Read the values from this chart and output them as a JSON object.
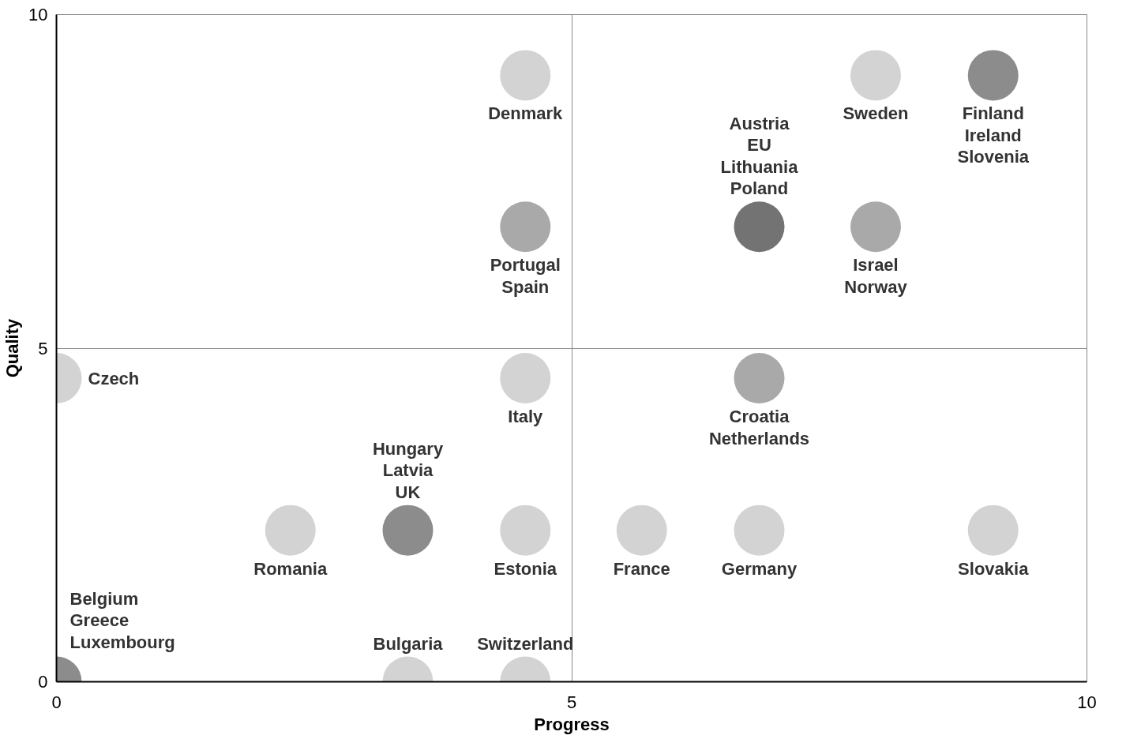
{
  "chart_data": {
    "type": "scatter",
    "xlabel": "Progress",
    "ylabel": "Quality",
    "xlim": [
      0,
      10
    ],
    "ylim": [
      0,
      10
    ],
    "xticks": [
      0,
      5,
      10
    ],
    "yticks": [
      0,
      5,
      10
    ],
    "grid": true,
    "marker": "circle",
    "series": [
      {
        "x": [
          0,
          3.41,
          4.55,
          2.27,
          3.41,
          4.55,
          5.68,
          6.82,
          9.09,
          0,
          4.55,
          6.82,
          4.55,
          6.82,
          7.95,
          4.55,
          7.95,
          9.09
        ],
        "values": [
          0,
          0,
          0,
          2.27,
          2.27,
          2.27,
          2.27,
          2.27,
          2.27,
          4.55,
          4.55,
          4.55,
          6.82,
          6.82,
          6.82,
          9.09,
          9.09,
          9.09
        ],
        "colors": [
          "#8c8c8c",
          "#d3d3d3",
          "#d3d3d3",
          "#d3d3d3",
          "#8c8c8c",
          "#d3d3d3",
          "#d3d3d3",
          "#d3d3d3",
          "#d3d3d3",
          "#d3d3d3",
          "#d3d3d3",
          "#a9a9a9",
          "#a9a9a9",
          "#737373",
          "#a9a9a9",
          "#d3d3d3",
          "#d3d3d3",
          "#8c8c8c"
        ]
      }
    ],
    "annotations": [
      {
        "text": "Belgium\nGreece\nLuxembourg",
        "x": 0,
        "y": 0
      },
      {
        "text": "Bulgaria",
        "x": 3.41,
        "y": 0
      },
      {
        "text": "Switzerland",
        "x": 4.55,
        "y": 0
      },
      {
        "text": "Romania",
        "x": 2.27,
        "y": 2.27
      },
      {
        "text": "Hungary\nLatvia\nUK",
        "x": 3.41,
        "y": 2.27
      },
      {
        "text": "Estonia",
        "x": 4.55,
        "y": 2.27
      },
      {
        "text": "France",
        "x": 5.68,
        "y": 2.27
      },
      {
        "text": "Germany",
        "x": 6.82,
        "y": 2.27
      },
      {
        "text": "Slovakia",
        "x": 9.09,
        "y": 2.27
      },
      {
        "text": "Czech",
        "x": 0,
        "y": 4.55
      },
      {
        "text": "Italy",
        "x": 4.55,
        "y": 4.55
      },
      {
        "text": "Croatia\nNetherlands",
        "x": 6.82,
        "y": 4.55
      },
      {
        "text": "Portugal\nSpain",
        "x": 4.55,
        "y": 6.82
      },
      {
        "text": "Austria\nEU\nLithuania\nPoland",
        "x": 6.82,
        "y": 6.82
      },
      {
        "text": "Israel\nNorway",
        "x": 7.95,
        "y": 6.82
      },
      {
        "text": "Denmark",
        "x": 4.55,
        "y": 9.09
      },
      {
        "text": "Sweden",
        "x": 7.95,
        "y": 9.09
      },
      {
        "text": "Finland\nIreland\nSlovenia",
        "x": 9.09,
        "y": 9.09
      }
    ]
  }
}
